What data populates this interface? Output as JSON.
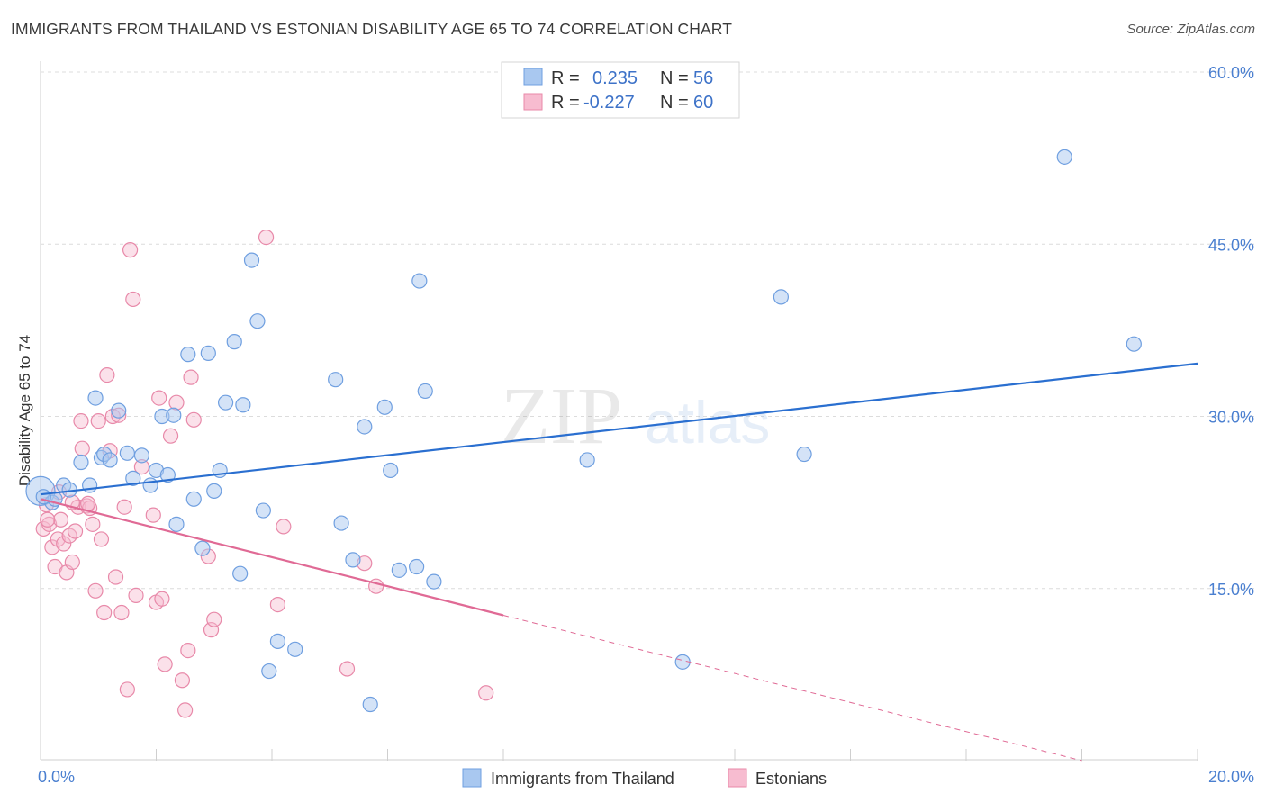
{
  "header": {
    "title": "IMMIGRANTS FROM THAILAND VS ESTONIAN DISABILITY AGE 65 TO 74 CORRELATION CHART",
    "source": "Source: ZipAtlas.com"
  },
  "watermark": {
    "zip": "ZIP",
    "atlas": "atlas"
  },
  "legend_top": {
    "rows": [
      {
        "r_label": "R =",
        "r_value": "0.235",
        "n_label": "N =",
        "n_value": "56"
      },
      {
        "r_label": "R =",
        "r_value": "-0.227",
        "n_label": "N =",
        "n_value": "60"
      }
    ]
  },
  "legend_bottom": {
    "items": [
      "Immigrants from Thailand",
      "Estonians"
    ]
  },
  "colors": {
    "blue_fill": "#a9c8f0",
    "blue_stroke": "#6f9fe0",
    "blue_line": "#2a6fd0",
    "pink_fill": "#f7bcd0",
    "pink_stroke": "#e889a9",
    "pink_line": "#e06a95",
    "tick_text": "#4a7fd0"
  },
  "chart_data": {
    "type": "scatter",
    "title": "IMMIGRANTS FROM THAILAND VS ESTONIAN DISABILITY AGE 65 TO 74 CORRELATION CHART",
    "xlabel": "",
    "ylabel": "Disability Age 65 to 74",
    "xlim": [
      0,
      20
    ],
    "ylim": [
      0,
      60
    ],
    "x_ticks": [
      "0.0%",
      "20.0%"
    ],
    "y_ticks": [
      "15.0%",
      "30.0%",
      "45.0%",
      "60.0%"
    ],
    "y_tick_values": [
      15,
      30,
      45,
      60
    ],
    "grid": true,
    "legend_placement": "top-center",
    "series": [
      {
        "name": "Immigrants from Thailand",
        "r": 0.235,
        "n": 56,
        "trend": {
          "x": [
            0,
            20
          ],
          "y": [
            23.2,
            34.6
          ],
          "dashed_from": null
        },
        "points": [
          [
            0.0,
            23.5
          ],
          [
            0.2,
            22.5
          ],
          [
            0.25,
            22.8
          ],
          [
            0.4,
            24.0
          ],
          [
            0.5,
            23.6
          ],
          [
            0.7,
            26.0
          ],
          [
            0.85,
            24.0
          ],
          [
            0.95,
            31.6
          ],
          [
            1.05,
            26.4
          ],
          [
            1.1,
            26.7
          ],
          [
            1.2,
            26.2
          ],
          [
            1.35,
            30.5
          ],
          [
            1.5,
            26.8
          ],
          [
            1.6,
            24.6
          ],
          [
            1.75,
            26.6
          ],
          [
            1.9,
            24.0
          ],
          [
            2.0,
            25.3
          ],
          [
            2.1,
            30.0
          ],
          [
            2.2,
            24.9
          ],
          [
            2.3,
            30.1
          ],
          [
            2.35,
            20.6
          ],
          [
            2.55,
            35.4
          ],
          [
            2.65,
            22.8
          ],
          [
            2.8,
            18.5
          ],
          [
            2.9,
            35.5
          ],
          [
            3.0,
            23.5
          ],
          [
            3.1,
            25.3
          ],
          [
            3.2,
            31.2
          ],
          [
            3.35,
            36.5
          ],
          [
            3.45,
            16.3
          ],
          [
            3.5,
            31.0
          ],
          [
            3.65,
            43.6
          ],
          [
            3.75,
            38.3
          ],
          [
            3.85,
            21.8
          ],
          [
            3.95,
            7.8
          ],
          [
            4.1,
            10.4
          ],
          [
            4.4,
            9.7
          ],
          [
            5.1,
            33.2
          ],
          [
            5.2,
            20.7
          ],
          [
            5.4,
            17.5
          ],
          [
            5.6,
            29.1
          ],
          [
            5.7,
            4.9
          ],
          [
            5.95,
            30.8
          ],
          [
            6.05,
            25.3
          ],
          [
            6.2,
            16.6
          ],
          [
            6.5,
            16.9
          ],
          [
            6.55,
            41.8
          ],
          [
            6.65,
            32.2
          ],
          [
            6.8,
            15.6
          ],
          [
            9.45,
            26.2
          ],
          [
            11.1,
            8.6
          ],
          [
            12.8,
            40.4
          ],
          [
            13.2,
            26.7
          ],
          [
            17.7,
            52.6
          ],
          [
            18.9,
            36.3
          ],
          [
            0.05,
            23.0
          ]
        ]
      },
      {
        "name": "Estonians",
        "r": -0.227,
        "n": 60,
        "trend": {
          "x": [
            0,
            18
          ],
          "y": [
            22.8,
            0
          ],
          "dashed_from": 8.0
        },
        "points": [
          [
            0.05,
            20.2
          ],
          [
            0.1,
            22.3
          ],
          [
            0.15,
            20.6
          ],
          [
            0.2,
            18.6
          ],
          [
            0.25,
            16.9
          ],
          [
            0.3,
            19.3
          ],
          [
            0.35,
            21.0
          ],
          [
            0.4,
            18.9
          ],
          [
            0.45,
            16.4
          ],
          [
            0.5,
            19.6
          ],
          [
            0.55,
            17.3
          ],
          [
            0.6,
            20.0
          ],
          [
            0.65,
            22.1
          ],
          [
            0.7,
            29.6
          ],
          [
            0.72,
            27.2
          ],
          [
            0.8,
            22.2
          ],
          [
            0.85,
            22.0
          ],
          [
            0.9,
            20.6
          ],
          [
            0.95,
            14.8
          ],
          [
            1.0,
            29.6
          ],
          [
            1.05,
            19.3
          ],
          [
            1.1,
            12.9
          ],
          [
            1.15,
            33.6
          ],
          [
            1.2,
            27.0
          ],
          [
            1.25,
            30.0
          ],
          [
            1.3,
            16.0
          ],
          [
            1.35,
            30.1
          ],
          [
            1.4,
            12.9
          ],
          [
            1.45,
            22.1
          ],
          [
            1.5,
            6.2
          ],
          [
            1.55,
            44.5
          ],
          [
            1.6,
            40.2
          ],
          [
            1.65,
            14.4
          ],
          [
            1.75,
            25.6
          ],
          [
            1.95,
            21.4
          ],
          [
            2.0,
            13.8
          ],
          [
            2.05,
            31.6
          ],
          [
            2.1,
            14.1
          ],
          [
            2.15,
            8.4
          ],
          [
            2.25,
            28.3
          ],
          [
            2.35,
            31.2
          ],
          [
            2.45,
            7.0
          ],
          [
            2.5,
            4.4
          ],
          [
            2.55,
            9.6
          ],
          [
            2.6,
            33.4
          ],
          [
            2.65,
            29.7
          ],
          [
            2.9,
            17.8
          ],
          [
            2.95,
            11.4
          ],
          [
            3.0,
            12.3
          ],
          [
            3.9,
            45.6
          ],
          [
            4.1,
            13.6
          ],
          [
            4.2,
            20.4
          ],
          [
            5.3,
            8.0
          ],
          [
            5.6,
            17.2
          ],
          [
            5.8,
            15.2
          ],
          [
            7.7,
            5.9
          ],
          [
            0.12,
            21.0
          ],
          [
            0.32,
            23.4
          ],
          [
            0.55,
            22.5
          ],
          [
            0.82,
            22.4
          ]
        ]
      }
    ]
  }
}
